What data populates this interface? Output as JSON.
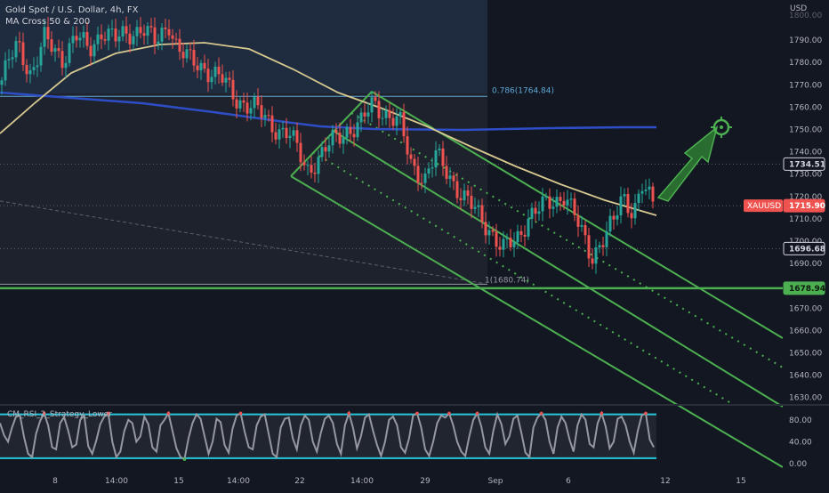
{
  "legend": {
    "line1": "Gold Spot / U.S. Dollar, 4h, FX",
    "line2": "MA Cross 50 & 200"
  },
  "currency": "USD",
  "rsi_title": "CM_RSI_2_Strategy_Lower",
  "colors": {
    "background": "#131722",
    "up": "#26a69a",
    "down": "#ef5350",
    "ma50": "#d6c88f",
    "ma200": "#2e4ec7",
    "channel": "#4caf50",
    "fib": "#5fa8d8",
    "rsi_band": "#26c6da",
    "rsi_line": "#9598a1"
  },
  "chart_data": [
    {
      "type": "candlestick",
      "title": "Gold Spot / U.S. Dollar, 4h, FX",
      "ylabel": "USD",
      "ylim": [
        1625,
        1802
      ],
      "yticks": [
        1630,
        1640,
        1650,
        1660,
        1670,
        1680,
        1690,
        1700,
        1710,
        1720,
        1730,
        1740,
        1750,
        1760,
        1770,
        1780,
        1790
      ],
      "ytick_labels": [
        "1630.00",
        "1640.00",
        "1650.00",
        "1660.00",
        "1670.00",
        "1680.00",
        "1690.00",
        "1700.00",
        "1710.00",
        "1720.00",
        "1730.00",
        "1740.00",
        "1750.00",
        "1760.00",
        "1770.00",
        "1780.00",
        "1790.00"
      ],
      "xtick_labels": [
        "8",
        "14:00",
        "15",
        "14:00",
        "22",
        "14:00",
        "29",
        "Sep",
        "6",
        "12",
        "15"
      ],
      "price_labels": [
        {
          "text": "1734.51",
          "value": 1734.51,
          "style": "plain"
        },
        {
          "text": "1715.90",
          "value": 1715.9,
          "style": "red"
        },
        {
          "text": "1696.68",
          "value": 1696.68,
          "style": "plain"
        },
        {
          "text": "1678.94",
          "value": 1678.94,
          "style": "green"
        }
      ],
      "symbol_label": "XAUUSD",
      "fib_labels": [
        {
          "text": "0.786(1764.84)",
          "value": 1764.84
        },
        {
          "text": "1(1680.74)",
          "value": 1680.74
        }
      ],
      "key_prices": [
        1800,
        1793,
        1775,
        1768,
        1764.84,
        1762,
        1760,
        1750,
        1745,
        1740,
        1734.51,
        1730,
        1725,
        1720,
        1715.9,
        1710,
        1705,
        1700,
        1696.68,
        1694,
        1690,
        1680.74,
        1678.94
      ],
      "ma50_level_now": 1710,
      "ma200_level_now": 1750,
      "target_level": 1750,
      "grid": false
    },
    {
      "type": "line",
      "title": "CM_RSI_2_Strategy_Lower",
      "ylim": [
        -10,
        105
      ],
      "yticks": [
        0,
        40,
        80
      ],
      "ytick_labels": [
        "0.00",
        "40.00",
        "80.00"
      ],
      "bands": [
        10,
        90
      ],
      "values": [
        74,
        52,
        40,
        66,
        86,
        88,
        48,
        18,
        12,
        55,
        78,
        92,
        70,
        30,
        26,
        74,
        85,
        60,
        30,
        35,
        80,
        88,
        32,
        18,
        42,
        72,
        86,
        92,
        40,
        12,
        22,
        60,
        80,
        74,
        40,
        50,
        86,
        72,
        30,
        22,
        70,
        80,
        92,
        60,
        28,
        12,
        8,
        46,
        74,
        90,
        82,
        50,
        18,
        40,
        82,
        76,
        34,
        20,
        64,
        88,
        92,
        58,
        30,
        26,
        70,
        86,
        90,
        54,
        18,
        12,
        66,
        82,
        84,
        46,
        26,
        70,
        88,
        80,
        40,
        22,
        56,
        82,
        88,
        74,
        36,
        18,
        70,
        92,
        66,
        28,
        50,
        84,
        90,
        60,
        34,
        14,
        40,
        80,
        86,
        70,
        30,
        20,
        46,
        88,
        92,
        66,
        26,
        14,
        40,
        74,
        88,
        84,
        92,
        70,
        40,
        22,
        14,
        50,
        80,
        92,
        68,
        30,
        18,
        60,
        90,
        72,
        36,
        50,
        82,
        88,
        56,
        20,
        12,
        66,
        84,
        92,
        80,
        40,
        18,
        66,
        86,
        74,
        44,
        22,
        70,
        90,
        80,
        36,
        30,
        74,
        92,
        68,
        28,
        40,
        82,
        86,
        70,
        40,
        20,
        60,
        88,
        92,
        44,
        30
      ]
    }
  ]
}
